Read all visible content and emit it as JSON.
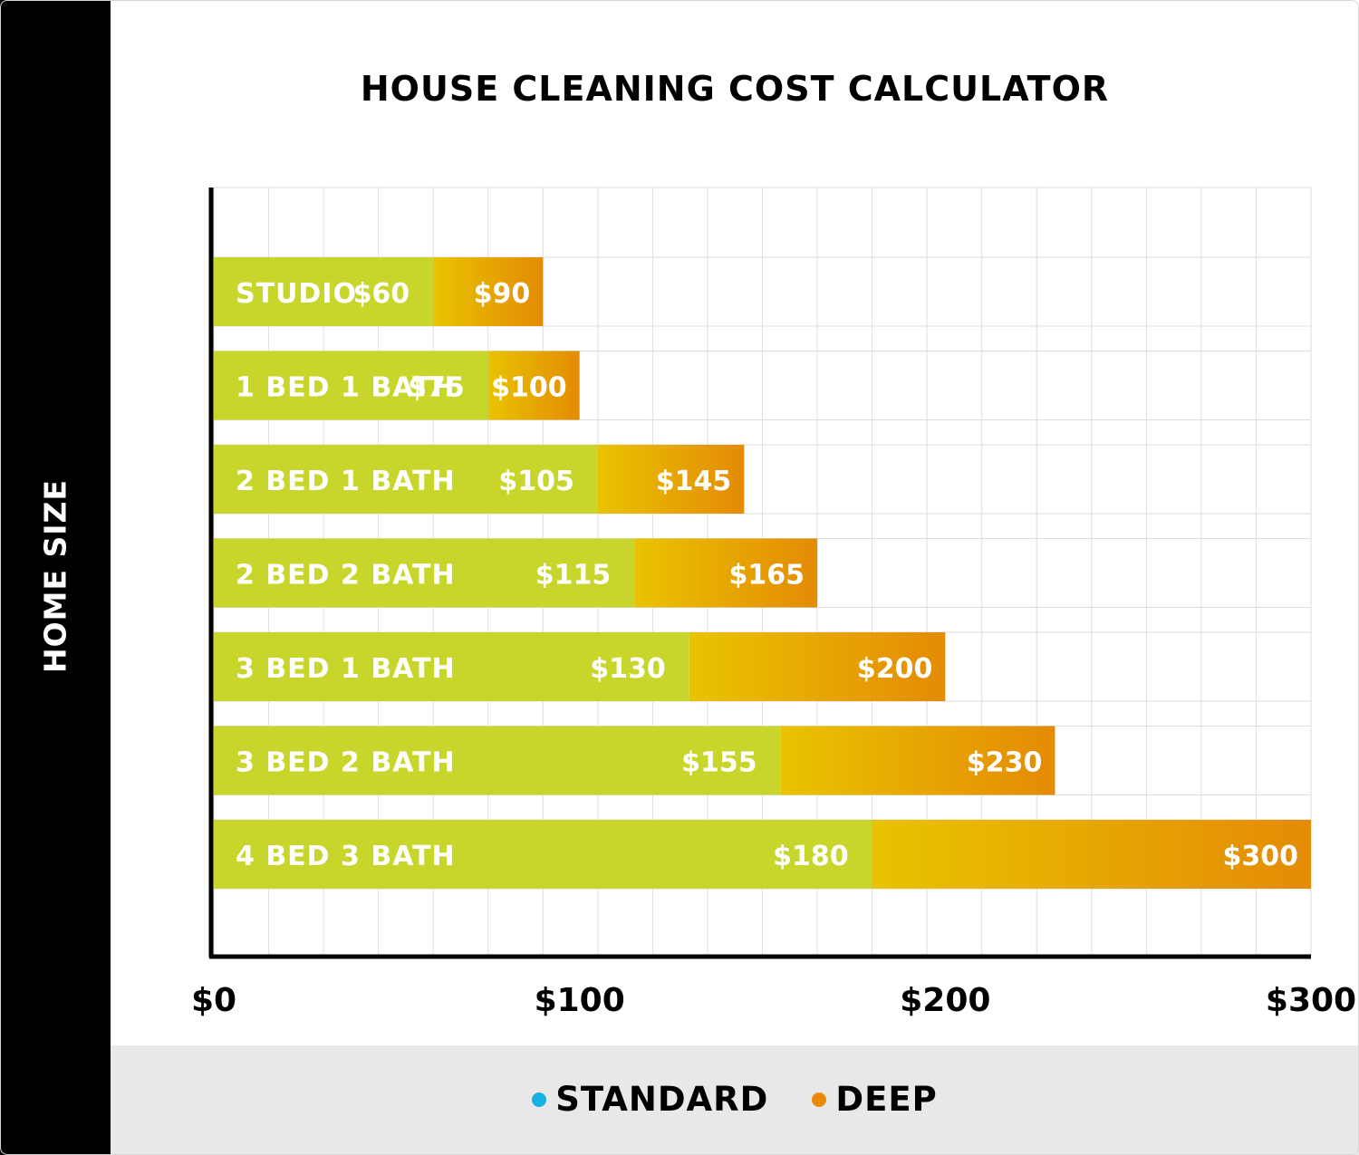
{
  "title": "HOUSE CLEANING COST CALCULATOR",
  "legend": [
    {
      "label": "STANDARD",
      "color": "#16b0e3"
    },
    {
      "label": "DEEP",
      "color": "#e8890a"
    }
  ],
  "colors": {
    "standard_bar": "#c8d62b",
    "deep_bar_start": "#e9c300",
    "deep_bar_end": "#e48b05",
    "grid": "#dedede",
    "axis": "#000000",
    "bar_label": "#ffffff"
  },
  "chart_data": {
    "type": "bar",
    "orientation": "horizontal",
    "stacked_overlay": true,
    "title": "HOUSE CLEANING COST CALCULATOR",
    "ylabel": "HOME SIZE",
    "xlabel": "",
    "categories": [
      "STUDIO",
      "1 BED 1 BATH",
      "2 BED 1 BATH",
      "2 BED 2 BATH",
      "3 BED 1 BATH",
      "3 BED 2 BATH",
      "4 BED 3 BATH"
    ],
    "series": [
      {
        "name": "STANDARD",
        "values": [
          60,
          75,
          105,
          115,
          130,
          155,
          180
        ]
      },
      {
        "name": "DEEP",
        "values": [
          90,
          100,
          145,
          165,
          200,
          230,
          300
        ]
      }
    ],
    "value_labels": {
      "STANDARD": [
        "$60",
        "$75",
        "$105",
        "$115",
        "$130",
        "$155",
        "$180"
      ],
      "DEEP": [
        "$90",
        "$100",
        "$145",
        "$165",
        "$200",
        "$230",
        "$300"
      ]
    },
    "xticks": [
      0,
      100,
      200,
      300
    ],
    "xtick_labels": [
      "$0",
      "$100",
      "$200",
      "$300"
    ],
    "xlim": [
      0,
      300
    ],
    "grid": true,
    "legend_position": "bottom"
  }
}
